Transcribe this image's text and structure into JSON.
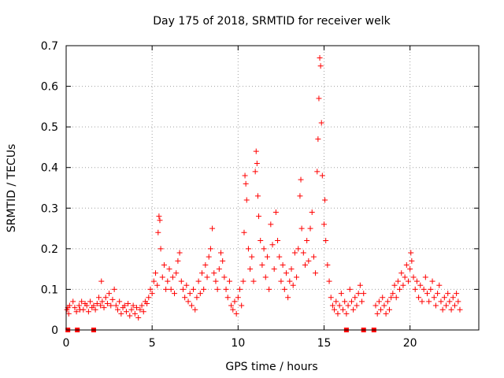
{
  "chart_data": {
    "type": "scatter",
    "title": "Day 175 of 2018, SRMTID for receiver welk",
    "xlabel": "GPS time / hours",
    "ylabel": "SRMTID / TECUs",
    "xlim": [
      0,
      24
    ],
    "ylim": [
      0,
      0.7
    ],
    "x_ticks": [
      0,
      5,
      10,
      15,
      20
    ],
    "y_ticks": [
      0,
      0.1,
      0.2,
      0.3,
      0.4,
      0.5,
      0.6,
      0.7
    ],
    "x_tick_labels": [
      "0",
      "5",
      "10",
      "15",
      "20"
    ],
    "y_tick_labels": [
      "0",
      "0.1",
      "0.2",
      "0.3",
      "0.4",
      "0.5",
      "0.6",
      "0.7"
    ],
    "grid": true,
    "marker": "+",
    "color": "#ff0000",
    "series": [
      {
        "name": "SRMTID",
        "points": [
          [
            0.05,
            0.05
          ],
          [
            0.1,
            0.055
          ],
          [
            0.15,
            0.04
          ],
          [
            0.2,
            0.06
          ],
          [
            0.4,
            0.07
          ],
          [
            0.5,
            0.055
          ],
          [
            0.6,
            0.045
          ],
          [
            0.75,
            0.06
          ],
          [
            0.8,
            0.05
          ],
          [
            0.9,
            0.07
          ],
          [
            1.0,
            0.05
          ],
          [
            1.1,
            0.065
          ],
          [
            1.2,
            0.06
          ],
          [
            1.3,
            0.045
          ],
          [
            1.4,
            0.07
          ],
          [
            1.5,
            0.055
          ],
          [
            1.6,
            0.06
          ],
          [
            1.7,
            0.05
          ],
          [
            1.8,
            0.065
          ],
          [
            1.9,
            0.08
          ],
          [
            2.0,
            0.06
          ],
          [
            2.05,
            0.12
          ],
          [
            2.1,
            0.07
          ],
          [
            2.2,
            0.055
          ],
          [
            2.3,
            0.08
          ],
          [
            2.4,
            0.065
          ],
          [
            2.5,
            0.09
          ],
          [
            2.6,
            0.06
          ],
          [
            2.7,
            0.075
          ],
          [
            2.8,
            0.1
          ],
          [
            2.9,
            0.06
          ],
          [
            3.0,
            0.05
          ],
          [
            3.1,
            0.07
          ],
          [
            3.2,
            0.04
          ],
          [
            3.3,
            0.055
          ],
          [
            3.4,
            0.06
          ],
          [
            3.5,
            0.045
          ],
          [
            3.6,
            0.065
          ],
          [
            3.7,
            0.035
          ],
          [
            3.8,
            0.05
          ],
          [
            3.9,
            0.06
          ],
          [
            4.0,
            0.04
          ],
          [
            4.1,
            0.055
          ],
          [
            4.2,
            0.03
          ],
          [
            4.3,
            0.05
          ],
          [
            4.4,
            0.06
          ],
          [
            4.5,
            0.045
          ],
          [
            4.6,
            0.07
          ],
          [
            4.7,
            0.065
          ],
          [
            4.8,
            0.08
          ],
          [
            4.9,
            0.1
          ],
          [
            5.0,
            0.09
          ],
          [
            5.1,
            0.12
          ],
          [
            5.2,
            0.14
          ],
          [
            5.3,
            0.11
          ],
          [
            5.35,
            0.24
          ],
          [
            5.4,
            0.28
          ],
          [
            5.45,
            0.27
          ],
          [
            5.5,
            0.2
          ],
          [
            5.6,
            0.13
          ],
          [
            5.7,
            0.16
          ],
          [
            5.8,
            0.1
          ],
          [
            5.9,
            0.12
          ],
          [
            6.0,
            0.15
          ],
          [
            6.1,
            0.1
          ],
          [
            6.2,
            0.13
          ],
          [
            6.3,
            0.09
          ],
          [
            6.4,
            0.14
          ],
          [
            6.5,
            0.17
          ],
          [
            6.6,
            0.19
          ],
          [
            6.7,
            0.12
          ],
          [
            6.8,
            0.1
          ],
          [
            6.9,
            0.08
          ],
          [
            7.0,
            0.11
          ],
          [
            7.1,
            0.07
          ],
          [
            7.2,
            0.09
          ],
          [
            7.3,
            0.06
          ],
          [
            7.4,
            0.1
          ],
          [
            7.5,
            0.05
          ],
          [
            7.6,
            0.08
          ],
          [
            7.7,
            0.12
          ],
          [
            7.8,
            0.09
          ],
          [
            7.9,
            0.14
          ],
          [
            8.0,
            0.1
          ],
          [
            8.1,
            0.16
          ],
          [
            8.2,
            0.13
          ],
          [
            8.3,
            0.18
          ],
          [
            8.4,
            0.2
          ],
          [
            8.5,
            0.25
          ],
          [
            8.6,
            0.14
          ],
          [
            8.7,
            0.12
          ],
          [
            8.8,
            0.1
          ],
          [
            8.9,
            0.15
          ],
          [
            9.0,
            0.19
          ],
          [
            9.1,
            0.17
          ],
          [
            9.2,
            0.13
          ],
          [
            9.3,
            0.1
          ],
          [
            9.4,
            0.08
          ],
          [
            9.5,
            0.12
          ],
          [
            9.6,
            0.06
          ],
          [
            9.7,
            0.05
          ],
          [
            9.8,
            0.07
          ],
          [
            9.9,
            0.04
          ],
          [
            10.0,
            0.08
          ],
          [
            10.1,
            0.1
          ],
          [
            10.2,
            0.06
          ],
          [
            10.3,
            0.12
          ],
          [
            10.35,
            0.24
          ],
          [
            10.4,
            0.38
          ],
          [
            10.45,
            0.36
          ],
          [
            10.5,
            0.32
          ],
          [
            10.6,
            0.2
          ],
          [
            10.7,
            0.15
          ],
          [
            10.8,
            0.18
          ],
          [
            10.9,
            0.12
          ],
          [
            11.0,
            0.39
          ],
          [
            11.05,
            0.44
          ],
          [
            11.1,
            0.41
          ],
          [
            11.15,
            0.33
          ],
          [
            11.2,
            0.28
          ],
          [
            11.3,
            0.22
          ],
          [
            11.4,
            0.16
          ],
          [
            11.5,
            0.2
          ],
          [
            11.6,
            0.13
          ],
          [
            11.7,
            0.18
          ],
          [
            11.8,
            0.1
          ],
          [
            11.9,
            0.26
          ],
          [
            12.0,
            0.21
          ],
          [
            12.1,
            0.15
          ],
          [
            12.2,
            0.29
          ],
          [
            12.3,
            0.22
          ],
          [
            12.4,
            0.18
          ],
          [
            12.5,
            0.12
          ],
          [
            12.6,
            0.16
          ],
          [
            12.7,
            0.1
          ],
          [
            12.8,
            0.14
          ],
          [
            12.9,
            0.08
          ],
          [
            13.0,
            0.12
          ],
          [
            13.1,
            0.15
          ],
          [
            13.2,
            0.11
          ],
          [
            13.3,
            0.19
          ],
          [
            13.4,
            0.13
          ],
          [
            13.5,
            0.2
          ],
          [
            13.6,
            0.33
          ],
          [
            13.65,
            0.37
          ],
          [
            13.7,
            0.25
          ],
          [
            13.8,
            0.19
          ],
          [
            13.9,
            0.16
          ],
          [
            14.0,
            0.22
          ],
          [
            14.1,
            0.17
          ],
          [
            14.2,
            0.25
          ],
          [
            14.3,
            0.29
          ],
          [
            14.4,
            0.18
          ],
          [
            14.5,
            0.14
          ],
          [
            14.6,
            0.39
          ],
          [
            14.65,
            0.47
          ],
          [
            14.7,
            0.57
          ],
          [
            14.75,
            0.67
          ],
          [
            14.8,
            0.65
          ],
          [
            14.85,
            0.51
          ],
          [
            14.9,
            0.38
          ],
          [
            15.0,
            0.26
          ],
          [
            15.05,
            0.32
          ],
          [
            15.1,
            0.22
          ],
          [
            15.2,
            0.16
          ],
          [
            15.3,
            0.12
          ],
          [
            15.4,
            0.08
          ],
          [
            15.5,
            0.06
          ],
          [
            15.6,
            0.05
          ],
          [
            15.7,
            0.07
          ],
          [
            15.8,
            0.04
          ],
          [
            15.9,
            0.06
          ],
          [
            16.0,
            0.09
          ],
          [
            16.1,
            0.05
          ],
          [
            16.2,
            0.07
          ],
          [
            16.3,
            0.04
          ],
          [
            16.4,
            0.06
          ],
          [
            16.5,
            0.1
          ],
          [
            16.6,
            0.07
          ],
          [
            16.7,
            0.05
          ],
          [
            16.8,
            0.08
          ],
          [
            16.9,
            0.06
          ],
          [
            17.0,
            0.09
          ],
          [
            17.1,
            0.11
          ],
          [
            17.2,
            0.07
          ],
          [
            17.3,
            0.09
          ],
          [
            18.0,
            0.06
          ],
          [
            18.1,
            0.04
          ],
          [
            18.2,
            0.07
          ],
          [
            18.3,
            0.05
          ],
          [
            18.4,
            0.08
          ],
          [
            18.5,
            0.06
          ],
          [
            18.6,
            0.04
          ],
          [
            18.7,
            0.07
          ],
          [
            18.8,
            0.05
          ],
          [
            18.9,
            0.08
          ],
          [
            19.0,
            0.09
          ],
          [
            19.1,
            0.11
          ],
          [
            19.2,
            0.08
          ],
          [
            19.3,
            0.12
          ],
          [
            19.4,
            0.1
          ],
          [
            19.5,
            0.14
          ],
          [
            19.6,
            0.11
          ],
          [
            19.7,
            0.13
          ],
          [
            19.8,
            0.16
          ],
          [
            19.9,
            0.12
          ],
          [
            20.0,
            0.15
          ],
          [
            20.05,
            0.19
          ],
          [
            20.1,
            0.17
          ],
          [
            20.2,
            0.13
          ],
          [
            20.3,
            0.1
          ],
          [
            20.4,
            0.12
          ],
          [
            20.5,
            0.08
          ],
          [
            20.6,
            0.11
          ],
          [
            20.7,
            0.07
          ],
          [
            20.8,
            0.1
          ],
          [
            20.9,
            0.13
          ],
          [
            21.0,
            0.09
          ],
          [
            21.1,
            0.07
          ],
          [
            21.2,
            0.1
          ],
          [
            21.3,
            0.12
          ],
          [
            21.4,
            0.08
          ],
          [
            21.5,
            0.06
          ],
          [
            21.6,
            0.09
          ],
          [
            21.7,
            0.11
          ],
          [
            21.8,
            0.07
          ],
          [
            21.9,
            0.05
          ],
          [
            22.0,
            0.08
          ],
          [
            22.1,
            0.06
          ],
          [
            22.2,
            0.09
          ],
          [
            22.3,
            0.07
          ],
          [
            22.4,
            0.05
          ],
          [
            22.5,
            0.08
          ],
          [
            22.6,
            0.06
          ],
          [
            22.7,
            0.09
          ],
          [
            22.8,
            0.07
          ],
          [
            22.9,
            0.05
          ]
        ]
      }
    ],
    "gap_markers_x": [
      0.1,
      0.65,
      1.6,
      16.3,
      17.3,
      17.9
    ]
  }
}
